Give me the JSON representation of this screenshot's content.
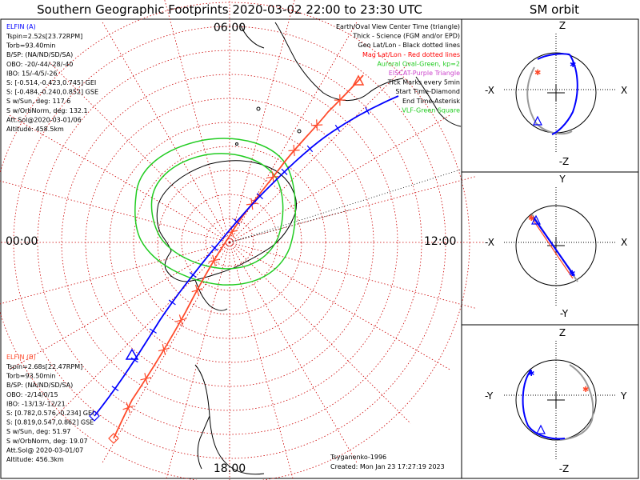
{
  "title": "Southern Geographic Footprints 2020-03-02 22:00 to 23:30 UTC",
  "sm_title": "SM orbit",
  "colors": {
    "elfin_a": "#0000ff",
    "elfin_b": "#ff4a2a",
    "grid": "#cc0000",
    "oval": "#22cc22",
    "eiscat": "#cc44cc",
    "vlf": "#22cc22",
    "orbit_ring": "#999999"
  },
  "map": {
    "lt_labels": {
      "top": "06:00",
      "left": "00:00",
      "right": "12:00",
      "bottom": "18:00"
    }
  },
  "elfin_a": {
    "header": "ELFIN (A)",
    "lines": [
      "Tspin=2.52s[23.72RPM]",
      "Torb=93.40min",
      "B/SP: (NA/ND/SD/SA)",
      "OBO: -20/-44/-28/-40",
      "IBO: 15/-4/5/-26",
      "S: [-0.514,-0.423,0.745] GEI",
      "S: [-0.484,-0.240,0.852] GSE",
      "S w/Sun, deg: 117.6",
      "S w/OrbNorm, deg: 132.1",
      "Att.Sol@2020-03-01/06",
      "Altitude: 458.5km"
    ]
  },
  "elfin_b": {
    "header": "ELFIN (B)",
    "lines": [
      "Tspin=2.68s[22.47RPM]",
      "Torb=93.50min",
      "B/SP: (NA/ND/SD/SA)",
      "OBO: -2/14/0/15",
      "IBO: -13/13/-12/21",
      "S: [0.782,0.576,-0.234] GEI",
      "S: [0.819,0.547,0.862] GSE",
      "S w/Sun, deg: 51.97",
      "S w/OrbNorm, deg: 19.07",
      "Att.Sol@ 2020-03-01/07",
      "Altitude: 456.3km"
    ]
  },
  "legend": {
    "lines": [
      {
        "text": "Earth/Oval View Center Time (triangle)",
        "color": "#000000"
      },
      {
        "text": "Thick - Science (FGM and/or EPD)",
        "color": "#000000"
      },
      {
        "text": "Geo Lat/Lon - Black dotted lines",
        "color": "#000000"
      },
      {
        "text": "Mag Lat/Lon - Red dotted lines",
        "color": "#ff0000"
      },
      {
        "text": "Auroral Oval-Green, kp=2",
        "color": "#22cc22"
      },
      {
        "text": "EISCAT-Purple Triangle",
        "color": "#cc44cc"
      },
      {
        "text": "Tick Marks every 5min",
        "color": "#000000"
      },
      {
        "text": "Start Time-Diamond",
        "color": "#000000"
      },
      {
        "text": "End Time-Asterisk",
        "color": "#000000"
      },
      {
        "text": "VLF-Green Square",
        "color": "#22cc22"
      }
    ]
  },
  "credits": {
    "author": "Tsyganenko-1996",
    "created": "Created: Mon Jan 23 17:27:19 2023"
  },
  "sm_panels": [
    {
      "id": "xz",
      "top": "Z",
      "bottom": "-Z",
      "left": "-X",
      "right": "X"
    },
    {
      "id": "xy",
      "top": "Y",
      "bottom": "-Y",
      "left": "-X",
      "right": "X"
    },
    {
      "id": "yz",
      "top": "Z",
      "bottom": "-Z",
      "left": "-Y",
      "right": "Y"
    }
  ]
}
